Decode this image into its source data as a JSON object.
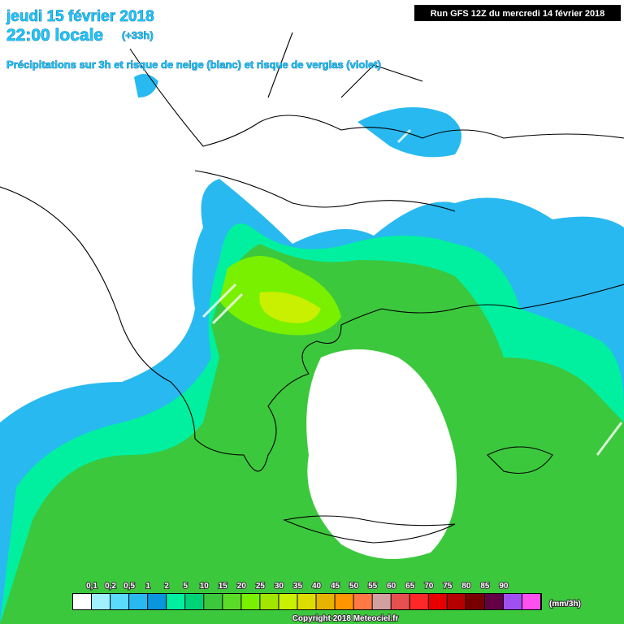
{
  "header": {
    "date": "jeudi 15 février 2018",
    "time": "22:00 locale",
    "offset": "(+33h)",
    "subtitle": "Précipitations sur 3h et risque de neige (blanc) et risque de verglas (violet)",
    "run": "Run GFS 12Z du mercredi 14 février 2018"
  },
  "legend": {
    "unit": "(mm/3h)",
    "labels": [
      "0,1",
      "0,2",
      "0,5",
      "1",
      "2",
      "5",
      "10",
      "15",
      "20",
      "25",
      "30",
      "35",
      "40",
      "45",
      "50",
      "55",
      "60",
      "65",
      "70",
      "75",
      "80",
      "85",
      "90"
    ],
    "colors": [
      "#ffffff",
      "#a0f0ff",
      "#5adcfa",
      "#28b9f0",
      "#0a96dc",
      "#00f0a0",
      "#00d278",
      "#3cc83c",
      "#5adc28",
      "#78f000",
      "#a0e600",
      "#c8f000",
      "#dcdc00",
      "#e6b400",
      "#ff9600",
      "#ff7846",
      "#d2a0a0",
      "#e65050",
      "#ff2828",
      "#e60000",
      "#b40000",
      "#780000",
      "#640046",
      "#a050f0",
      "#ff50f0"
    ]
  },
  "footer": {
    "copyright": "Copyright 2018 Meteociel.fr"
  }
}
